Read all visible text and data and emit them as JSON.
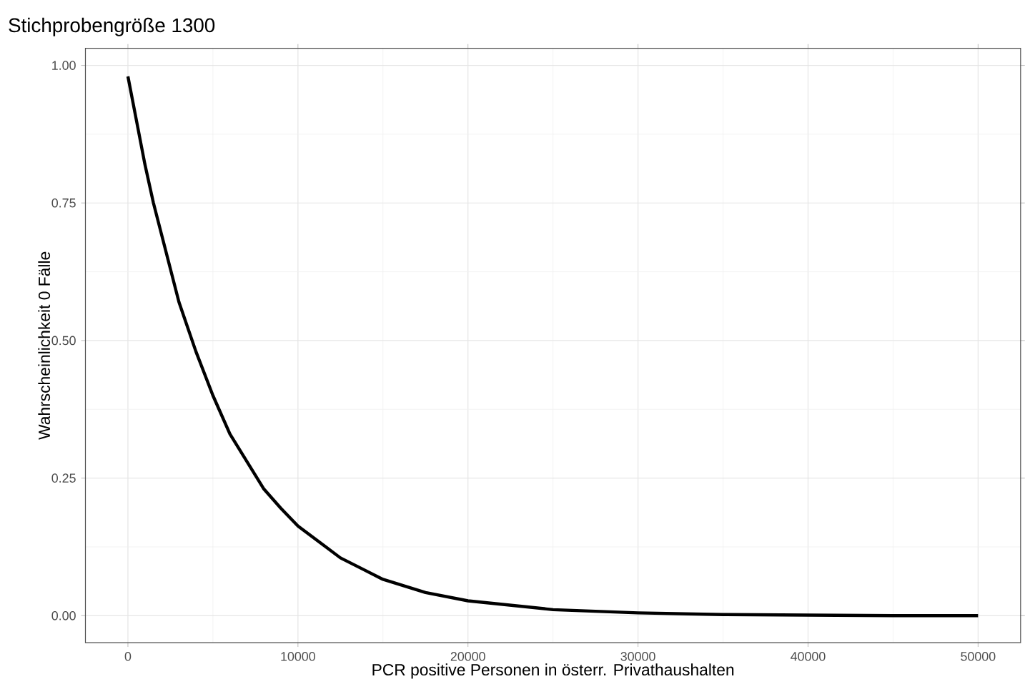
{
  "chart_data": {
    "type": "line",
    "title": "Stichprobengröße 1300",
    "xlabel": "PCR positive Personen in österr. Privathaushalten",
    "ylabel": "Wahrscheinlichkeit 0 Fälle",
    "x": [
      0,
      500,
      1000,
      1500,
      2000,
      2500,
      3000,
      4000,
      5000,
      6000,
      7000,
      8000,
      9000,
      10000,
      12500,
      15000,
      17500,
      20000,
      25000,
      30000,
      35000,
      40000,
      45000,
      50000
    ],
    "series": [
      {
        "color": "#000000",
        "values": [
          0.98,
          0.9,
          0.82,
          0.75,
          0.69,
          0.63,
          0.57,
          0.48,
          0.4,
          0.33,
          0.28,
          0.23,
          0.195,
          0.163,
          0.105,
          0.066,
          0.042,
          0.027,
          0.011,
          0.005,
          0.002,
          0.001,
          0,
          0
        ]
      }
    ],
    "xlim": [
      -2500,
      52500
    ],
    "ylim": [
      -0.049,
      1.031
    ],
    "xticks": [
      0,
      10000,
      20000,
      30000,
      40000,
      50000
    ],
    "yticks": [
      {
        "value": 0,
        "label": "0.00"
      },
      {
        "value": 0.25,
        "label": "0.25"
      },
      {
        "value": 0.5,
        "label": "0.50"
      },
      {
        "value": 0.75,
        "label": "0.75"
      },
      {
        "value": 1,
        "label": "1.00"
      }
    ],
    "grid": true,
    "marker": "none",
    "line_style": "solid"
  }
}
